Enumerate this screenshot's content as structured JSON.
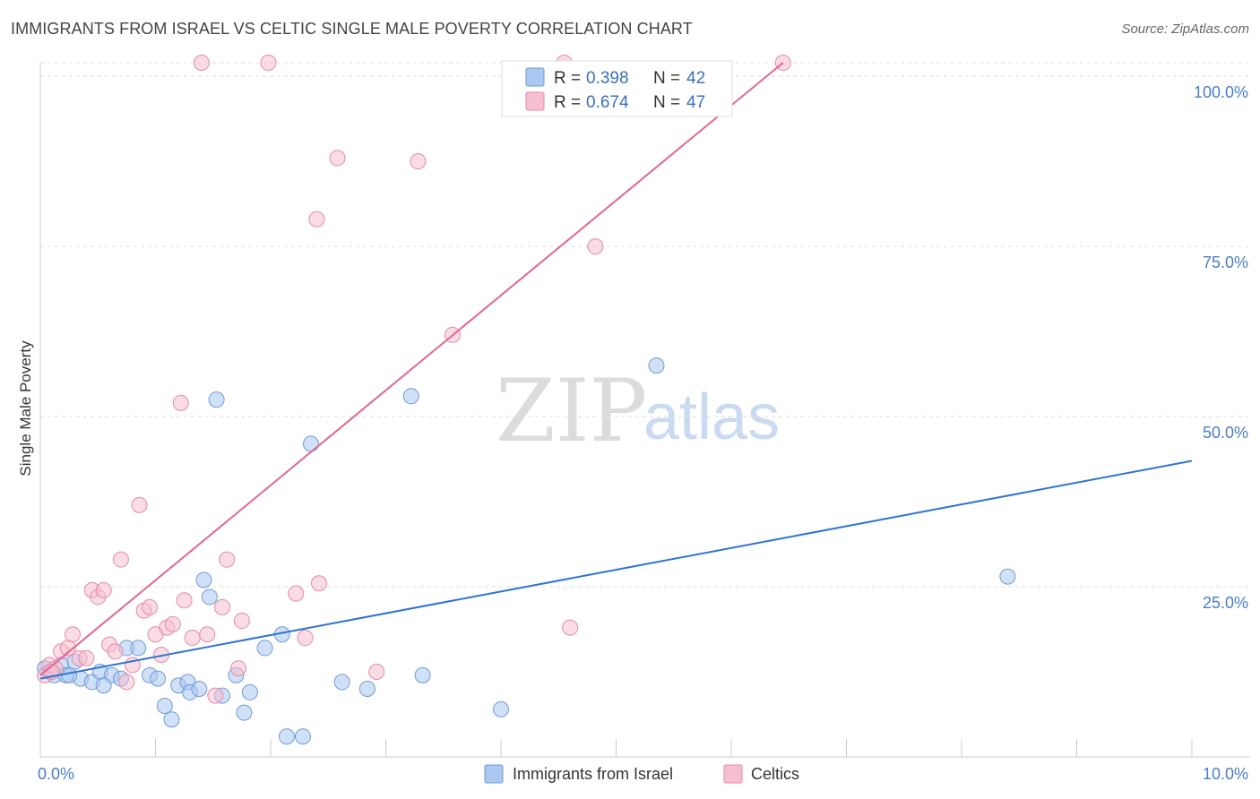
{
  "header": {
    "title": "IMMIGRANTS FROM ISRAEL VS CELTIC SINGLE MALE POVERTY CORRELATION CHART",
    "source": "Source: ZipAtlas.com"
  },
  "watermark": {
    "zip": "ZIP",
    "atlas": "atlas"
  },
  "colors": {
    "blue_fill": "#aac8f0",
    "blue_stroke": "#6f9ad8",
    "blue_line": "#2f74d0",
    "pink_fill": "#f6bfd0",
    "pink_stroke": "#e58aa8",
    "pink_line": "#e06792",
    "grid": "#dddddd",
    "tick_text": "#4a7cc8"
  },
  "legend": {
    "rows": [
      {
        "r_label": "R =",
        "r_value": "0.398",
        "n_label": "N =",
        "n_value": "42"
      },
      {
        "r_label": "R =",
        "r_value": "0.674",
        "n_label": "N =",
        "n_value": "47"
      }
    ]
  },
  "bottom_legend": [
    "Immigrants from Israel",
    "Celtics"
  ],
  "chart_data": {
    "type": "scatter",
    "title": "IMMIGRANTS FROM ISRAEL VS CELTIC SINGLE MALE POVERTY CORRELATION CHART",
    "xlabel": "",
    "ylabel": "Single Male Poverty",
    "xlim": [
      0,
      10
    ],
    "ylim": [
      0,
      102
    ],
    "x_ticks": [
      {
        "value": 0,
        "label": "0.0%"
      },
      {
        "value": 10,
        "label": "10.0%"
      }
    ],
    "y_ticks": [
      {
        "value": 25,
        "label": "25.0%"
      },
      {
        "value": 50,
        "label": "50.0%"
      },
      {
        "value": 75,
        "label": "75.0%"
      },
      {
        "value": 100,
        "label": "100.0%"
      }
    ],
    "series": [
      {
        "name": "Immigrants from Israel",
        "R": 0.398,
        "N": 42,
        "trend": {
          "x": [
            0,
            10
          ],
          "y": [
            11.5,
            43.5
          ]
        },
        "points": [
          [
            0.04,
            13.0
          ],
          [
            0.08,
            12.5
          ],
          [
            0.12,
            12.0
          ],
          [
            0.18,
            13.5
          ],
          [
            0.22,
            12.0
          ],
          [
            0.3,
            14.0
          ],
          [
            0.35,
            11.5
          ],
          [
            0.45,
            11.0
          ],
          [
            0.52,
            12.5
          ],
          [
            0.62,
            12.0
          ],
          [
            0.7,
            11.5
          ],
          [
            0.75,
            16.0
          ],
          [
            0.85,
            16.0
          ],
          [
            0.95,
            12.0
          ],
          [
            1.02,
            11.5
          ],
          [
            1.08,
            7.5
          ],
          [
            1.14,
            5.5
          ],
          [
            1.2,
            10.5
          ],
          [
            1.28,
            11.0
          ],
          [
            1.3,
            9.5
          ],
          [
            1.38,
            10.0
          ],
          [
            1.42,
            26.0
          ],
          [
            1.47,
            23.5
          ],
          [
            1.53,
            52.5
          ],
          [
            1.58,
            9.0
          ],
          [
            1.7,
            12.0
          ],
          [
            1.77,
            6.5
          ],
          [
            1.82,
            9.5
          ],
          [
            1.95,
            16.0
          ],
          [
            2.1,
            18.0
          ],
          [
            2.14,
            3.0
          ],
          [
            2.28,
            3.0
          ],
          [
            2.35,
            46.0
          ],
          [
            2.62,
            11.0
          ],
          [
            2.84,
            10.0
          ],
          [
            3.22,
            53.0
          ],
          [
            3.32,
            12.0
          ],
          [
            4.0,
            7.0
          ],
          [
            5.35,
            57.5
          ],
          [
            8.4,
            26.5
          ],
          [
            0.25,
            12.0
          ],
          [
            0.55,
            10.5
          ]
        ]
      },
      {
        "name": "Celtics",
        "R": 0.674,
        "N": 47,
        "trend": {
          "x": [
            0,
            6.45
          ],
          "y": [
            12.0,
            102.0
          ]
        },
        "points": [
          [
            0.04,
            12.0
          ],
          [
            0.08,
            13.5
          ],
          [
            0.13,
            13.0
          ],
          [
            0.18,
            15.5
          ],
          [
            0.24,
            16.0
          ],
          [
            0.28,
            18.0
          ],
          [
            0.34,
            14.5
          ],
          [
            0.4,
            14.5
          ],
          [
            0.45,
            24.5
          ],
          [
            0.5,
            23.5
          ],
          [
            0.55,
            24.5
          ],
          [
            0.6,
            16.5
          ],
          [
            0.65,
            15.5
          ],
          [
            0.7,
            29.0
          ],
          [
            0.75,
            11.0
          ],
          [
            0.8,
            13.5
          ],
          [
            0.86,
            37.0
          ],
          [
            0.9,
            21.5
          ],
          [
            0.95,
            22.0
          ],
          [
            1.0,
            18.0
          ],
          [
            1.05,
            15.0
          ],
          [
            1.1,
            19.0
          ],
          [
            1.15,
            19.5
          ],
          [
            1.22,
            52.0
          ],
          [
            1.25,
            23.0
          ],
          [
            1.32,
            17.5
          ],
          [
            1.4,
            102.0
          ],
          [
            1.45,
            18.0
          ],
          [
            1.52,
            9.0
          ],
          [
            1.58,
            22.0
          ],
          [
            1.62,
            29.0
          ],
          [
            1.72,
            13.0
          ],
          [
            1.75,
            20.0
          ],
          [
            1.98,
            102.0
          ],
          [
            2.22,
            24.0
          ],
          [
            2.3,
            17.5
          ],
          [
            2.4,
            79.0
          ],
          [
            2.42,
            25.5
          ],
          [
            2.58,
            88.0
          ],
          [
            2.92,
            12.5
          ],
          [
            3.28,
            87.5
          ],
          [
            3.58,
            62.0
          ],
          [
            4.55,
            102.0
          ],
          [
            4.6,
            19.0
          ],
          [
            4.82,
            75.0
          ],
          [
            6.45,
            102.0
          ],
          [
            0.1,
            12.5
          ]
        ]
      }
    ]
  }
}
